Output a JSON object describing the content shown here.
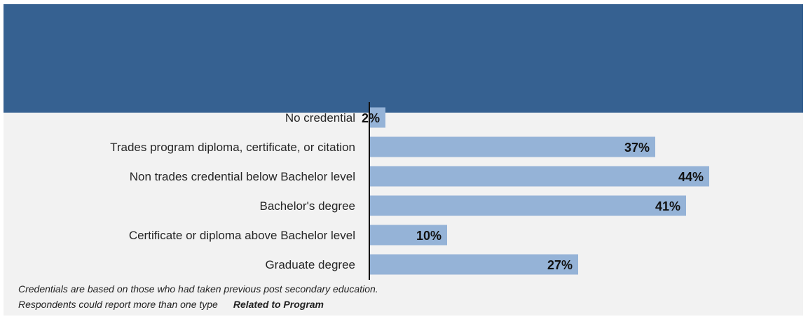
{
  "chart_data": {
    "type": "bar",
    "orientation": "horizontal",
    "categories": [
      "No credential",
      "Trades program diploma, certificate, or citation",
      "Non trades credential below Bachelor level",
      "Bachelor's degree",
      "Certificate or diploma above Bachelor level",
      "Graduate degree"
    ],
    "values": [
      2,
      37,
      44,
      41,
      10,
      27
    ],
    "value_labels": [
      "2%",
      "37%",
      "44%",
      "41%",
      "10%",
      "27%"
    ],
    "xlim": [
      0,
      45
    ],
    "grid": false,
    "bar_color": "#95b3d7"
  },
  "footnote": {
    "line1": "Credentials are based on those who had taken previous post secondary education.",
    "line2": "Respondents could report more than one type",
    "tag": "Related to Program"
  },
  "colors": {
    "banner": "#366191",
    "panel": "#f2f2f2",
    "bar": "#95b3d7"
  }
}
